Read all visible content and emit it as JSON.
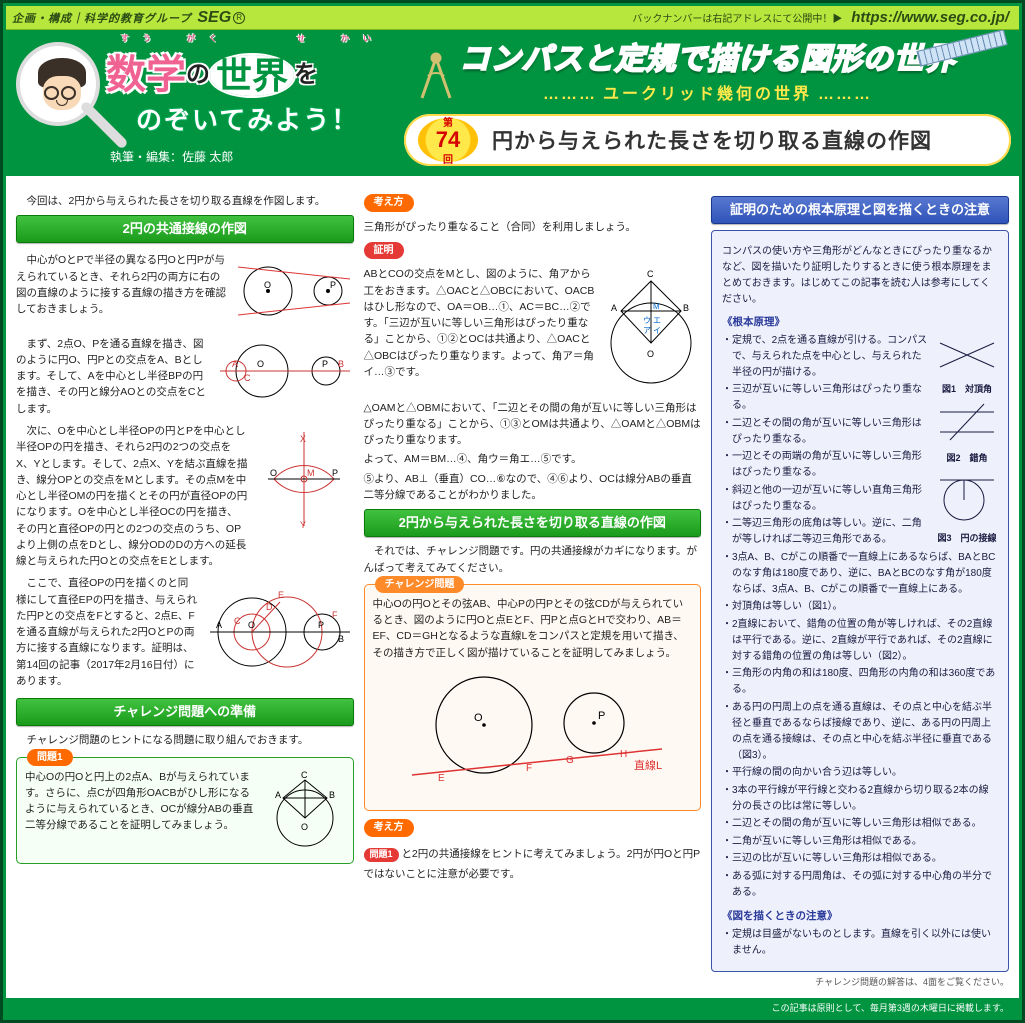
{
  "topbar": {
    "company_prefix": "企画・構成｜科学的教育グループ",
    "brand": "SEG",
    "back_number": "バックナンバーは右記アドレスにて公開中！▶",
    "url": "https://www.seg.co.jp/"
  },
  "banner": {
    "title_ruby": "すう　がく　　　せ　かい",
    "title_main_1": "数学",
    "title_no": "の",
    "title_main_2": "世界",
    "title_wo": "を",
    "subtitle": "のぞいてみよう！",
    "author_label": "執筆・編集：",
    "author": "佐藤 太郎",
    "right_title": "コンパスと定規で描ける図形の世界",
    "right_sub": "ユークリッド幾何の世界",
    "episode_prefix": "第",
    "episode_num": "74",
    "episode_suffix": "回",
    "episode_title": "円から与えられた長さを切り取る直線の作図"
  },
  "col1": {
    "intro": "今回は、2円から与えられた長さを切り取る直線を作図します。",
    "h1": "2円の共通接線の作図",
    "p1": "中心がOとPで半径の異なる円Oと円Pが与えられているとき、それら2円の両方に右の図の直線のように接する直線の描き方を確認しておきましょう。",
    "p2": "まず、2点O、Pを通る直線を描き、図のように円O、円Pとの交点をA、Bとします。そして、Aを中心とし半径BPの円を描き、その円と線分AOとの交点をCとします。",
    "p3": "次に、Oを中心とし半径OPの円とPを中心とし半径OPの円を描き、それら2円の2つの交点をX、Yとします。そして、2点X、Yを結ぶ直線を描き、線分OPとの交点をMとします。その点Mを中心とし半径OMの円を描くとその円が直径OPの円になります。Oを中心とし半径OCの円を描き、その円と直径OPの円との2つの交点のうち、OPより上側の点をDとし、線分ODのDの方への延長線と与えられた円Oとの交点をEとします。",
    "p4": "ここで、直径OPの円を描くのと同様にして直径EPの円を描き、与えられた円Pとの交点をFとすると、2点E、Fを通る直線が与えられた2円OとPの両方に接する直線になります。証明は、第14回の記事（2017年2月16日付）にあります。",
    "h2": "チャレンジ問題への準備",
    "p5": "チャレンジ問題のヒントになる問題に取り組んでおきます。",
    "box1_tag": "問題1",
    "box1_text": "中心Oの円Oと円上の2点A、Bが与えられています。さらに、点Cが四角形OACBがひし形になるように与えられているとき、OCが線分ABの垂直二等分線であることを証明してみましょう。"
  },
  "col2": {
    "tag_kangae": "考え方",
    "kangae_text": "三角形がぴったり重なること（合同）を利用しましょう。",
    "tag_shoumei": "証明",
    "shoumei_p1": "ABとCOの交点をMとし、図のように、角アから工をおきます。△OACと△OBCにおいて、OACBはひし形なので、OA＝OB…①、AC＝BC…②です。「三辺が互いに等しい三角形はぴったり重なる」ことから、①②とOCは共通より、△OACと△OBCはぴったり重なります。よって、角ア＝角イ…③です。",
    "shoumei_p2": "△OAMと△OBMにおいて、「二辺とその間の角が互いに等しい三角形はぴったり重なる」ことから、①③とOMは共通より、△OAMと△OBMはぴったり重なります。",
    "shoumei_p3": "よって、AM＝BM…④、角ウ＝角エ…⑤です。",
    "shoumei_p4": "⑤より、AB⊥（垂直）CO…⑥なので、④⑥より、OCは線分ABの垂直二等分線であることがわかりました。",
    "h3": "2円から与えられた長さを切り取る直線の作図",
    "p6": "それでは、チャレンジ問題です。円の共通接線がカギになります。がんばって考えてみてください。",
    "ch_tag": "チャレンジ問題",
    "ch_text": "中心Oの円Oとその弦AB、中心Pの円Pとその弦CDが与えられているとき、図のように円Oと点EとF、円Pと点GとHで交わり、AB＝EF、CD＝GHとなるような直線Lをコンパスと定規を用いて描き、その描き方で正しく図が描けていることを証明してみましょう。",
    "l_label": "直線L",
    "tag_kangae2": "考え方",
    "kangae2_text_a": "問題1",
    "kangae2_text_b": "と2円の共通接線をヒントに考えてみましょう。2円が円Oと円Pではないことに注意が必要です。"
  },
  "col3": {
    "h": "証明のための根本原理と図を描くときの注意",
    "intro": "コンパスの使い方や三角形がどんなときにぴったり重なるかなど、図を描いたり証明したりするときに使う根本原理をまとめておきます。はじめてこの記事を読む人は参考にしてください。",
    "bh1": "《根本原理》",
    "root": [
      "定規で、2点を通る直線が引ける。コンパスで、与えられた点を中心とし、与えられた半径の円が描ける。",
      "三辺が互いに等しい三角形はぴったり重なる。",
      "二辺とその間の角が互いに等しい三角形はぴったり重なる。",
      "一辺とその両端の角が互いに等しい三角形はぴったり重なる。",
      "斜辺と他の一辺が互いに等しい直角三角形はぴったり重なる。",
      "二等辺三角形の底角は等しい。逆に、二角が等しければ二等辺三角形である。",
      "3点A、B、Cがこの順番で一直線上にあるならば、BAとBCのなす角は180度であり、逆に、BAとBCのなす角が180度ならば、3点A、B、Cがこの順番で一直線上にある。",
      "対頂角は等しい（図1）。",
      "2直線において、錯角の位置の角が等しければ、その2直線は平行である。逆に、2直線が平行であれば、その2直線に対する錯角の位置の角は等しい（図2）。",
      "三角形の内角の和は180度、四角形の内角の和は360度である。",
      "ある円の円周上の点を通る直線は、その点と中心を結ぶ半径と垂直であるならば接線であり、逆に、ある円の円周上の点を通る接線は、その点と中心を結ぶ半径に垂直である（図3）。",
      "平行線の間の向かい合う辺は等しい。",
      "3本の平行線が平行線と交わる2直線から切り取る2本の線分の長さの比は常に等しい。",
      "二辺とその間の角が互いに等しい三角形は相似である。",
      "二角が互いに等しい三角形は相似である。",
      "三辺の比が互いに等しい三角形は相似である。",
      "ある弧に対する円周角は、その弧に対する中心角の半分である。"
    ],
    "fig1_label": "図1　対頂角",
    "fig2_label": "図2　錯角",
    "fig3_label": "図3　円の接線",
    "bh2": "《図を描くときの注意》",
    "note": "定規は目盛がないものとします。直線を引く以外には使いません。",
    "footnote": "チャレンジ問題の解答は、4面をご覧ください。"
  },
  "footer": "この記事は原則として、毎月第3週の木曜日に掲載します。",
  "colors": {
    "green": "#019440",
    "green_dark": "#0a7a0a",
    "lime": "#b7e63c",
    "pink": "#f06292",
    "yellow": "#ffe94a",
    "orange": "#ff8a2a",
    "red": "#e53935",
    "blue": "#3a54aa",
    "bluepanel": "#eef0fb"
  }
}
